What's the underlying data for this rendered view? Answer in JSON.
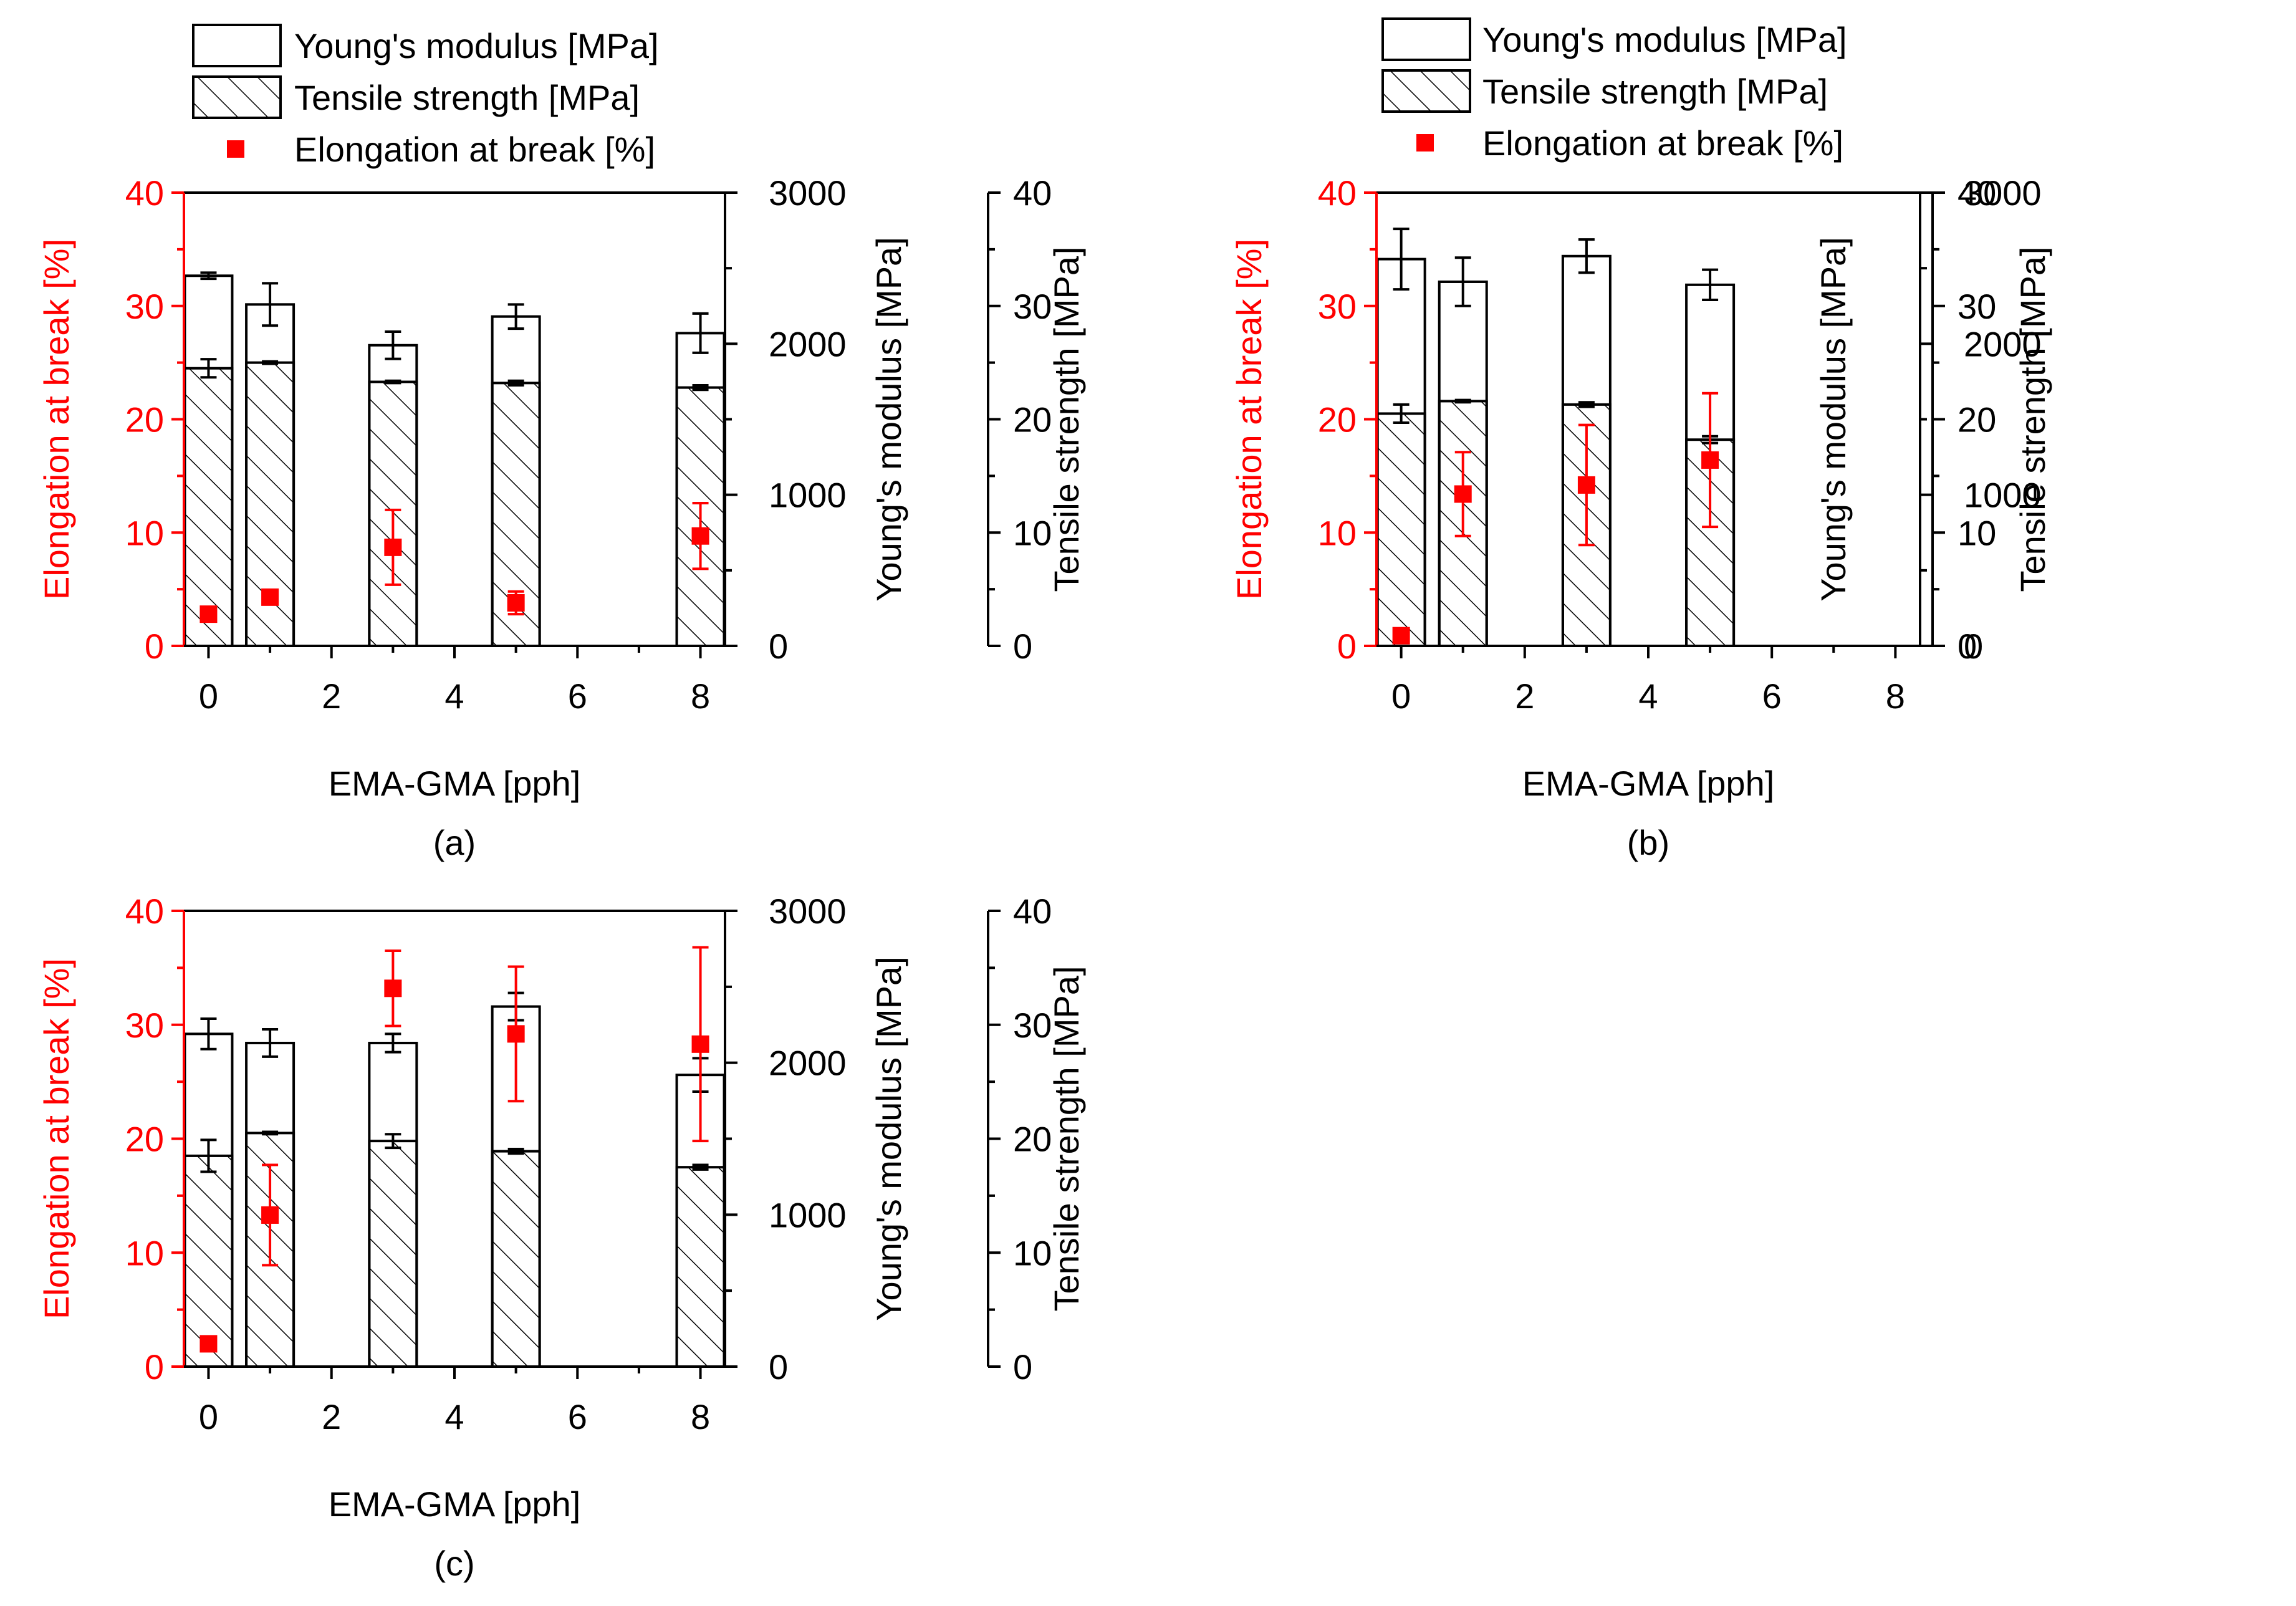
{
  "colors": {
    "elongation": "#ff0000",
    "axis": "#000000",
    "bar_fill": "#ffffff",
    "background": "#ffffff"
  },
  "legend": {
    "modulus_label": "Young's modulus [MPa]",
    "tensile_label": "Tensile strength [MPa]",
    "elongation_label": "Elongation at break [%]"
  },
  "chart_data": [
    {
      "type": "bar",
      "panel_label": "(a)",
      "xlabel": "EMA-GMA [pph]",
      "ylabel_left": "Elongation at break [%]",
      "ylabel_modulus": "Young's modulus [MPa]",
      "ylabel_tensile": "Tensile strength [MPa]",
      "xlim": [
        -0.4,
        8.4
      ],
      "xticks": [
        0,
        2,
        4,
        6,
        8
      ],
      "elongation_ylim": [
        0,
        40
      ],
      "elongation_yticks": [
        0,
        10,
        20,
        30,
        40
      ],
      "modulus_ylim": [
        0,
        3000
      ],
      "modulus_yticks": [
        0,
        1000,
        2000,
        3000
      ],
      "tensile_ylim": [
        0,
        40
      ],
      "tensile_yticks": [
        0,
        10,
        20,
        30,
        40
      ],
      "x": [
        0,
        1,
        3,
        5,
        8
      ],
      "series": [
        {
          "name": "Young's modulus [MPa]",
          "values": [
            2450,
            2260,
            1990,
            2180,
            2070
          ],
          "errors": [
            20,
            140,
            90,
            80,
            130
          ]
        },
        {
          "name": "Tensile strength [MPa]",
          "values": [
            24.5,
            25.0,
            23.3,
            23.2,
            22.8
          ],
          "errors": [
            0.8,
            0.1,
            0.1,
            0.2,
            0.2
          ]
        },
        {
          "name": "Elongation at break [%]",
          "values": [
            2.8,
            4.3,
            8.7,
            3.8,
            9.7
          ],
          "errors": [
            0.3,
            0.3,
            3.3,
            1.0,
            2.9
          ]
        }
      ]
    },
    {
      "type": "bar",
      "panel_label": "(b)",
      "xlabel": "EMA-GMA [pph]",
      "ylabel_left": "Elongation at break [%]",
      "ylabel_modulus": "Young's modulus [MPa]",
      "ylabel_tensile": "Tensile strength [MPa]",
      "xlim": [
        -0.4,
        8.4
      ],
      "xticks": [
        0,
        2,
        4,
        6,
        8
      ],
      "elongation_ylim": [
        0,
        40
      ],
      "elongation_yticks": [
        0,
        10,
        20,
        30,
        40
      ],
      "modulus_ylim": [
        0,
        3000
      ],
      "modulus_yticks": [
        0,
        1000,
        2000,
        3000
      ],
      "tensile_ylim": [
        0,
        40
      ],
      "tensile_yticks": [
        0,
        10,
        20,
        30,
        40
      ],
      "x": [
        0,
        1,
        3,
        5
      ],
      "series": [
        {
          "name": "Young's modulus [MPa]",
          "values": [
            2560,
            2410,
            2580,
            2390
          ],
          "errors": [
            200,
            160,
            110,
            100
          ]
        },
        {
          "name": "Tensile strength [MPa]",
          "values": [
            20.5,
            21.6,
            21.3,
            18.2
          ],
          "errors": [
            0.8,
            0.1,
            0.2,
            0.3
          ]
        },
        {
          "name": "Elongation at break [%]",
          "values": [
            0.9,
            13.4,
            14.2,
            16.4
          ],
          "errors": [
            0.2,
            3.7,
            5.3,
            5.9
          ]
        }
      ]
    },
    {
      "type": "bar",
      "panel_label": "(c)",
      "xlabel": "EMA-GMA [pph]",
      "ylabel_left": "Elongation at break [%]",
      "ylabel_modulus": "Young's modulus [MPa]",
      "ylabel_tensile": "Tensile strength [MPa]",
      "xlim": [
        -0.4,
        8.4
      ],
      "xticks": [
        0,
        2,
        4,
        6,
        8
      ],
      "elongation_ylim": [
        0,
        40
      ],
      "elongation_yticks": [
        0,
        10,
        20,
        30,
        40
      ],
      "modulus_ylim": [
        0,
        3000
      ],
      "modulus_yticks": [
        0,
        1000,
        2000,
        3000
      ],
      "tensile_ylim": [
        0,
        40
      ],
      "tensile_yticks": [
        0,
        10,
        20,
        30,
        40
      ],
      "x": [
        0,
        1,
        3,
        5,
        8
      ],
      "series": [
        {
          "name": "Young's modulus [MPa]",
          "values": [
            2190,
            2130,
            2130,
            2370,
            1920
          ],
          "errors": [
            100,
            90,
            60,
            90,
            110
          ]
        },
        {
          "name": "Tensile strength [MPa]",
          "values": [
            18.5,
            20.5,
            19.8,
            18.9,
            17.5
          ],
          "errors": [
            1.4,
            0.1,
            0.6,
            0.2,
            0.2
          ]
        },
        {
          "name": "Elongation at break [%]",
          "values": [
            2.0,
            13.3,
            33.2,
            29.2,
            28.3
          ],
          "errors": [
            0.3,
            4.4,
            3.3,
            5.9,
            8.5
          ]
        }
      ]
    }
  ]
}
